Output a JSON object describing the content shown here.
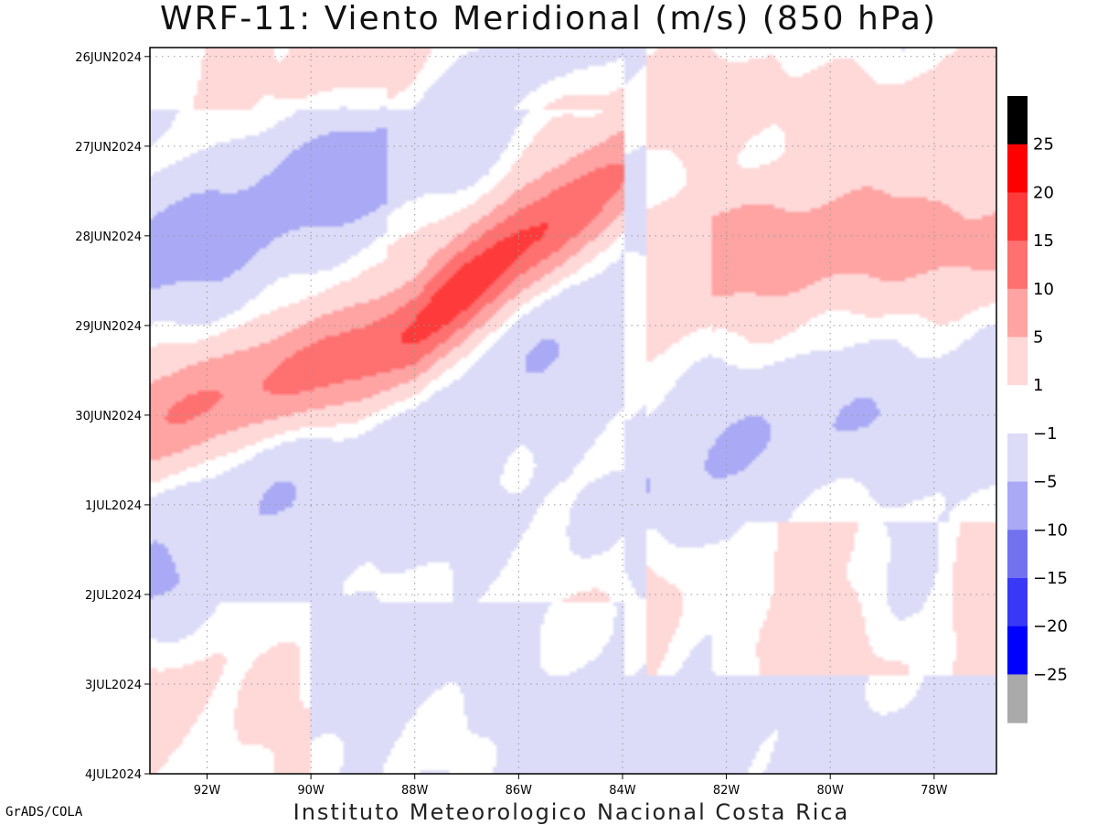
{
  "title": "WRF-11: Viento Meridional (m/s) (850 hPa)",
  "footer": "Instituto Meteorologico Nacional Costa Rica",
  "credit": "GrADS/COLA",
  "chart_data": {
    "type": "heatmap",
    "title": "WRF-11: Viento Meridional (m/s) (850 hPa)",
    "x_axis": {
      "label": "",
      "range": [
        -93.1,
        -76.8
      ],
      "ticks": [
        -92,
        -90,
        -88,
        -86,
        -84,
        -82,
        -80,
        -78
      ],
      "tick_labels": [
        "92W",
        "90W",
        "88W",
        "86W",
        "84W",
        "82W",
        "80W",
        "78W"
      ]
    },
    "y_axis": {
      "label": "",
      "range_days": [
        0,
        8.1
      ],
      "tick_labels": [
        "26JUN2024",
        "27JUN2024",
        "28JUN2024",
        "29JUN2024",
        "30JUN2024",
        "1JUL2024",
        "2JUL2024",
        "3JUL2024",
        "4JUL2024"
      ],
      "tick_days": [
        0.1,
        1.1,
        2.1,
        3.1,
        4.1,
        5.1,
        6.1,
        7.1,
        8.1
      ]
    },
    "grid": true,
    "colorbar": {
      "position": "right",
      "labels": [
        "25",
        "20",
        "15",
        "10",
        "5",
        "1",
        "-1",
        "-5",
        "-10",
        "-15",
        "-20",
        "-25"
      ],
      "colors": [
        "#000000",
        "#ff0000",
        "#ff3a3a",
        "#ff7070",
        "#ffa3a3",
        "#ffd8d8",
        "#ffffff",
        "#dcdcf8",
        "#a9a9f5",
        "#7272f0",
        "#3838f6",
        "#0000ff",
        "#aaaaaa"
      ]
    },
    "features": [
      {
        "name": "positive-band",
        "value": 13,
        "lon": [
          -93.1,
          -88,
          -86,
          -84.1
        ],
        "day_center": [
          4.2,
          3.2,
          2.2,
          1.5
        ]
      },
      {
        "name": "north-negative",
        "value": -5,
        "lon": [
          -93,
          -88.5
        ],
        "day_center": [
          1.8,
          1.8
        ]
      },
      {
        "name": "south-negative",
        "value": -5,
        "lon": [
          -84,
          -77
        ],
        "day_center": [
          5.0,
          3.8
        ]
      },
      {
        "name": "east-positive",
        "value": 6,
        "lon": [
          -82,
          -77
        ],
        "day_center": [
          2.2,
          2.2
        ]
      }
    ]
  }
}
